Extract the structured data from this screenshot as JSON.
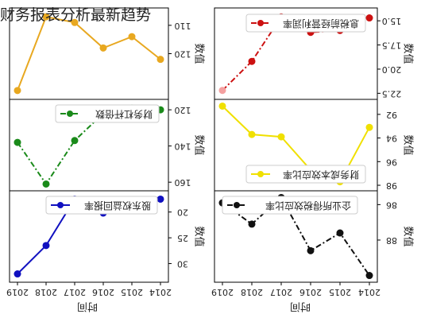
{
  "page": {
    "title": "财务报表分析最新趋势"
  },
  "chart_data": [
    {
      "type": "line",
      "id": "interest-coverage",
      "legend": "息税前经营利润率",
      "ylabel": "数值",
      "color": "#f4a0a0",
      "line_color": "#cc1111",
      "categories": [
        "2019",
        "2018",
        "2017",
        "2016",
        "2015",
        "2014"
      ],
      "values": [
        22.2,
        19.2,
        14.6,
        16.2,
        16.0,
        14.7
      ],
      "ylim": [
        14.0,
        22.8
      ],
      "yticks": [
        "15.0",
        "17.5",
        "20.0",
        "22.5"
      ],
      "ytick_values": [
        15.0,
        17.5,
        20.0,
        22.5
      ],
      "legend_placement": "top-left"
    },
    {
      "type": "line",
      "id": "cost-efficiency",
      "legend": "财务成本效应比率",
      "ylabel": "数值",
      "color": "#f0e000",
      "line_color": "#f0e000",
      "categories": [
        "2019",
        "2018",
        "2017",
        "2016",
        "2015",
        "2014"
      ],
      "values": [
        91.3,
        93.7,
        93.9,
        96.7,
        97.7,
        93.1
      ],
      "ylim": [
        91.0,
        98.2
      ],
      "yticks": [
        "92",
        "94",
        "96",
        "98"
      ],
      "ytick_values": [
        92,
        94,
        96,
        98
      ],
      "legend_placement": "bottom-left"
    },
    {
      "type": "line",
      "id": "tax-efficiency",
      "legend": "企业所得税效应比率",
      "ylabel": "数值",
      "color": "#111111",
      "line_color": "#111111",
      "categories": [
        "2019",
        "2018",
        "2017",
        "2016",
        "2015",
        "2014"
      ],
      "values": [
        85.9,
        87.1,
        85.6,
        88.6,
        87.6,
        90.0
      ],
      "ylim": [
        85.4,
        90.2
      ],
      "yticks": [
        "86",
        "88"
      ],
      "ytick_values": [
        86,
        88
      ],
      "legend_placement": "top-left"
    },
    {
      "type": "line",
      "id": "return-rate",
      "legend": "股东权益回报率",
      "ylabel": "数值",
      "color": "#1010c0",
      "line_color": "#1010c0",
      "categories": [
        "2019",
        "2018",
        "2017",
        "2016",
        "2015",
        "2014"
      ],
      "values": [
        32.0,
        26.5,
        17.5,
        20.2,
        18.8,
        17.5
      ],
      "ylim": [
        16.5,
        33.0
      ],
      "yticks": [
        "20",
        "25",
        "30"
      ],
      "ytick_values": [
        20,
        25,
        30
      ],
      "legend_placement": "top-left"
    },
    {
      "type": "line",
      "id": "leverage",
      "legend": "财务杠杆倍数",
      "ylabel": "数值",
      "color": "#1a8a1a",
      "line_color": "#1a8a1a",
      "categories": [
        "2019",
        "2018",
        "2017",
        "2016",
        "2015",
        "2014"
      ],
      "values": [
        138,
        161,
        137,
        122,
        119,
        120
      ],
      "ylim": [
        116,
        163
      ],
      "yticks": [
        "120",
        "140",
        "160"
      ],
      "ytick_values": [
        120,
        140,
        160
      ],
      "legend_placement": "top-left"
    },
    {
      "type": "line",
      "id": "asset-turnover",
      "legend": "",
      "ylabel": "数值",
      "color": "#e8a820",
      "line_color": "#e8a820",
      "categories": [
        "2019",
        "2018",
        "2017",
        "2016",
        "2015",
        "2014"
      ],
      "values": [
        133,
        107,
        109,
        118,
        114,
        122
      ],
      "ylim": [
        105,
        135
      ],
      "yticks": [
        "110",
        "120"
      ],
      "ytick_values": [
        110,
        120
      ],
      "legend_placement": "none"
    }
  ],
  "xaxis": {
    "label": "时间"
  }
}
